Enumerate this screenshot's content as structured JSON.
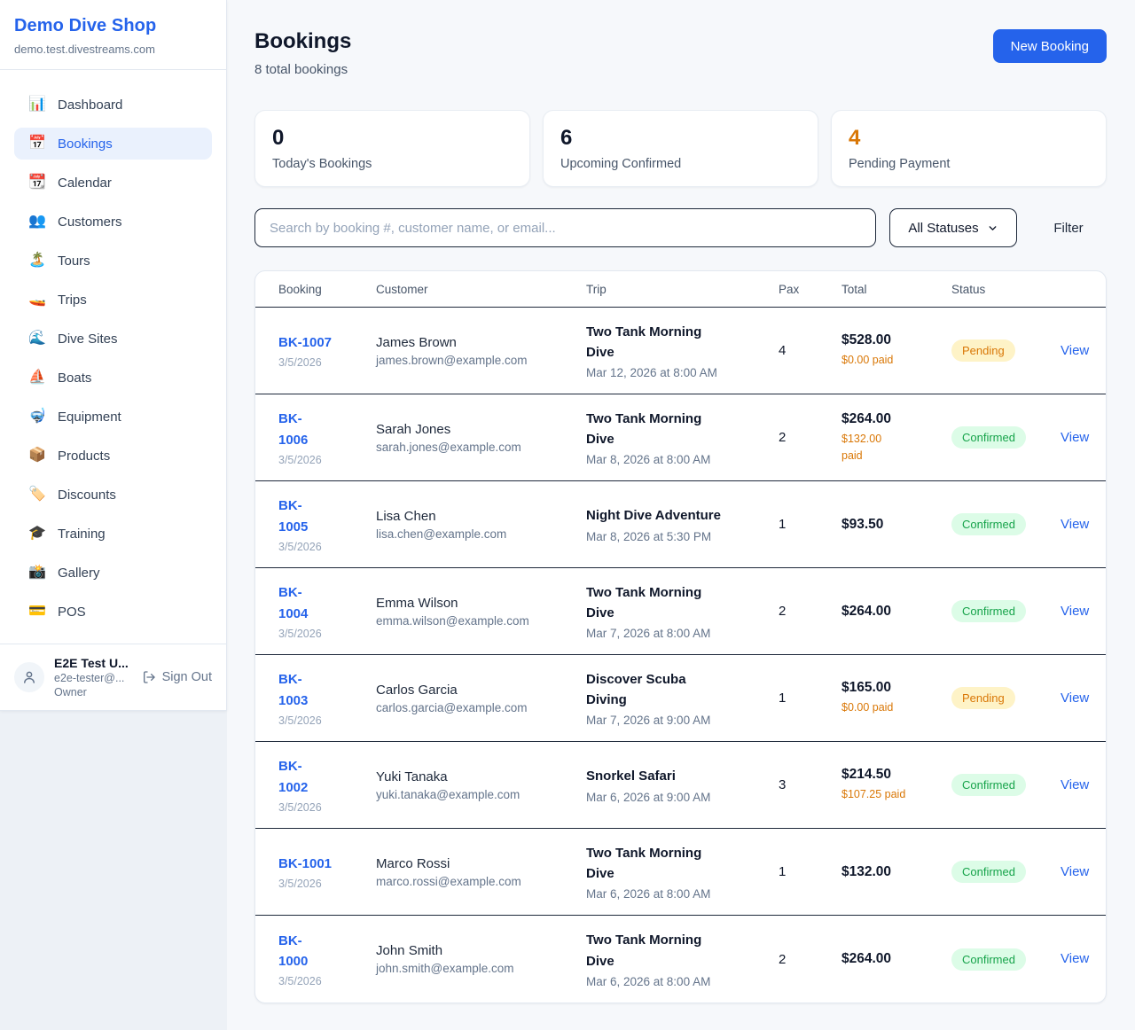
{
  "colors": {
    "accent": "#2563eb",
    "pending_text": "#d97706",
    "pending_bg": "#fef3c7",
    "confirmed_text": "#16a34a",
    "confirmed_bg": "#dcfce7"
  },
  "sidebar": {
    "brand": {
      "name": "Demo Dive Shop",
      "domain": "demo.test.divestreams.com"
    },
    "items": [
      {
        "icon": "📊",
        "label": "Dashboard",
        "active": false
      },
      {
        "icon": "📅",
        "label": "Bookings",
        "active": true
      },
      {
        "icon": "📆",
        "label": "Calendar",
        "active": false
      },
      {
        "icon": "👥",
        "label": "Customers",
        "active": false
      },
      {
        "icon": "🏝️",
        "label": "Tours",
        "active": false
      },
      {
        "icon": "🚤",
        "label": "Trips",
        "active": false
      },
      {
        "icon": "🌊",
        "label": "Dive Sites",
        "active": false
      },
      {
        "icon": "⛵",
        "label": "Boats",
        "active": false
      },
      {
        "icon": "🤿",
        "label": "Equipment",
        "active": false
      },
      {
        "icon": "📦",
        "label": "Products",
        "active": false
      },
      {
        "icon": "🏷️",
        "label": "Discounts",
        "active": false
      },
      {
        "icon": "🎓",
        "label": "Training",
        "active": false
      },
      {
        "icon": "📸",
        "label": "Gallery",
        "active": false
      },
      {
        "icon": "💳",
        "label": "POS",
        "active": false
      }
    ],
    "user": {
      "name": "E2E Test U...",
      "email": "e2e-tester@...",
      "role": "Owner",
      "sign_out": "Sign Out"
    }
  },
  "header": {
    "title": "Bookings",
    "subtitle": "8 total bookings",
    "new_booking": "New Booking"
  },
  "stats": [
    {
      "value": "0",
      "label": "Today's Bookings",
      "highlight": false
    },
    {
      "value": "6",
      "label": "Upcoming Confirmed",
      "highlight": false
    },
    {
      "value": "4",
      "label": "Pending Payment",
      "highlight": true
    }
  ],
  "filters": {
    "search_placeholder": "Search by booking #, customer name, or email...",
    "status_select": "All Statuses",
    "filter_label": "Filter"
  },
  "table": {
    "columns": [
      "Booking",
      "Customer",
      "Trip",
      "Pax",
      "Total",
      "Status"
    ],
    "rows": [
      {
        "id": "BK-1007",
        "id_two_lines": false,
        "date": "3/5/2026",
        "name": "James Brown",
        "email": "james.brown@example.com",
        "trip": "Two Tank Morning Dive",
        "trip_two_lines": true,
        "trip_date": "Mar 12, 2026 at 8:00 AM",
        "pax": "4",
        "total": "$528.00",
        "paid": "$0.00 paid",
        "paid_two_lines": false,
        "status": "Pending",
        "action": "View"
      },
      {
        "id": "BK-1006",
        "id_two_lines": true,
        "date": "3/5/2026",
        "name": "Sarah Jones",
        "email": "sarah.jones@example.com",
        "trip": "Two Tank Morning Dive",
        "trip_two_lines": true,
        "trip_date": "Mar 8, 2026 at 8:00 AM",
        "pax": "2",
        "total": "$264.00",
        "paid": "$132.00 paid",
        "paid_two_lines": true,
        "status": "Confirmed",
        "action": "View"
      },
      {
        "id": "BK-1005",
        "id_two_lines": true,
        "date": "3/5/2026",
        "name": "Lisa Chen",
        "email": "lisa.chen@example.com",
        "trip": "Night Dive Adventure",
        "trip_two_lines": false,
        "trip_date": "Mar 8, 2026 at 5:30 PM",
        "pax": "1",
        "total": "$93.50",
        "paid": "",
        "paid_two_lines": false,
        "status": "Confirmed",
        "action": "View"
      },
      {
        "id": "BK-1004",
        "id_two_lines": true,
        "date": "3/5/2026",
        "name": "Emma Wilson",
        "email": "emma.wilson@example.com",
        "trip": "Two Tank Morning Dive",
        "trip_two_lines": true,
        "trip_date": "Mar 7, 2026 at 8:00 AM",
        "pax": "2",
        "total": "$264.00",
        "paid": "",
        "paid_two_lines": false,
        "status": "Confirmed",
        "action": "View"
      },
      {
        "id": "BK-1003",
        "id_two_lines": true,
        "date": "3/5/2026",
        "name": "Carlos Garcia",
        "email": "carlos.garcia@example.com",
        "trip": "Discover Scuba Diving",
        "trip_two_lines": true,
        "trip_date": "Mar 7, 2026 at 9:00 AM",
        "pax": "1",
        "total": "$165.00",
        "paid": "$0.00 paid",
        "paid_two_lines": false,
        "status": "Pending",
        "action": "View"
      },
      {
        "id": "BK-1002",
        "id_two_lines": true,
        "date": "3/5/2026",
        "name": "Yuki Tanaka",
        "email": "yuki.tanaka@example.com",
        "trip": "Snorkel Safari",
        "trip_two_lines": false,
        "trip_date": "Mar 6, 2026 at 9:00 AM",
        "pax": "3",
        "total": "$214.50",
        "paid": "$107.25 paid",
        "paid_two_lines": false,
        "status": "Confirmed",
        "action": "View"
      },
      {
        "id": "BK-1001",
        "id_two_lines": false,
        "date": "3/5/2026",
        "name": "Marco Rossi",
        "email": "marco.rossi@example.com",
        "trip": "Two Tank Morning Dive",
        "trip_two_lines": true,
        "trip_date": "Mar 6, 2026 at 8:00 AM",
        "pax": "1",
        "total": "$132.00",
        "paid": "",
        "paid_two_lines": false,
        "status": "Confirmed",
        "action": "View"
      },
      {
        "id": "BK-1000",
        "id_two_lines": true,
        "date": "3/5/2026",
        "name": "John Smith",
        "email": "john.smith@example.com",
        "trip": "Two Tank Morning Dive",
        "trip_two_lines": true,
        "trip_date": "Mar 6, 2026 at 8:00 AM",
        "pax": "2",
        "total": "$264.00",
        "paid": "",
        "paid_two_lines": false,
        "status": "Confirmed",
        "action": "View"
      }
    ]
  }
}
